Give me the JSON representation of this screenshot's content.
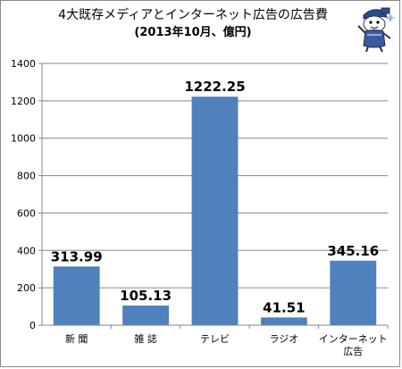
{
  "chart_data": {
    "type": "bar",
    "title": "4大既存メディアとインターネット広告の広告費",
    "subtitle": "(2013年10月、億円)",
    "categories": [
      "新 聞",
      "雑 誌",
      "テレビ",
      "ラジオ",
      "インターネット\n広告"
    ],
    "values": [
      313.99,
      105.13,
      1222.25,
      41.51,
      345.16
    ],
    "data_labels": [
      "313.99",
      "105.13",
      "1222.25",
      "41.51",
      "345.16"
    ],
    "ylim": [
      0,
      1400
    ],
    "yticks": [
      0,
      200,
      400,
      600,
      800,
      1000,
      1200,
      1400
    ],
    "grid": true,
    "legend": "none",
    "bar_color": "#4f81bd",
    "grid_color": "#878787",
    "axis_color": "#878787"
  }
}
